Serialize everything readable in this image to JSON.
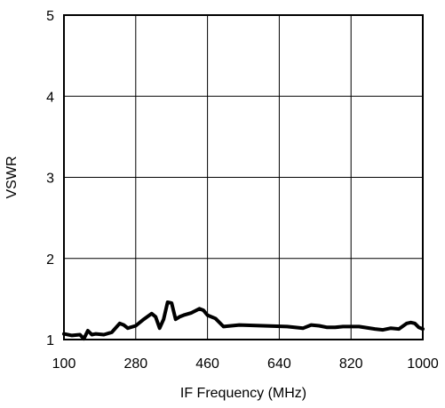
{
  "chart_data": {
    "type": "line",
    "title": "",
    "xlabel": "IF Frequency (MHz)",
    "ylabel": "VSWR",
    "xlim": [
      100,
      1000
    ],
    "ylim": [
      1,
      5
    ],
    "x_ticks": [
      "100",
      "280",
      "460",
      "640",
      "820",
      "1000"
    ],
    "y_ticks": [
      "1",
      "2",
      "3",
      "4",
      "5"
    ],
    "grid": true,
    "legend": "none",
    "line_color": "#000000",
    "series": [
      {
        "x": [
          100,
          120,
          140,
          150,
          160,
          170,
          180,
          200,
          220,
          240,
          250,
          260,
          280,
          300,
          320,
          330,
          340,
          350,
          360,
          370,
          380,
          390,
          400,
          420,
          440,
          450,
          460,
          480,
          500,
          540,
          600,
          660,
          700,
          720,
          740,
          760,
          780,
          800,
          840,
          880,
          900,
          920,
          940,
          960,
          970,
          980,
          990,
          1000
        ],
        "y": [
          1.07,
          1.05,
          1.06,
          1.01,
          1.11,
          1.06,
          1.07,
          1.06,
          1.09,
          1.2,
          1.18,
          1.14,
          1.17,
          1.25,
          1.32,
          1.28,
          1.14,
          1.25,
          1.46,
          1.45,
          1.25,
          1.28,
          1.3,
          1.33,
          1.38,
          1.36,
          1.3,
          1.26,
          1.16,
          1.18,
          1.17,
          1.16,
          1.14,
          1.18,
          1.17,
          1.15,
          1.15,
          1.16,
          1.16,
          1.13,
          1.12,
          1.14,
          1.13,
          1.2,
          1.21,
          1.2,
          1.15,
          1.13
        ]
      }
    ]
  }
}
